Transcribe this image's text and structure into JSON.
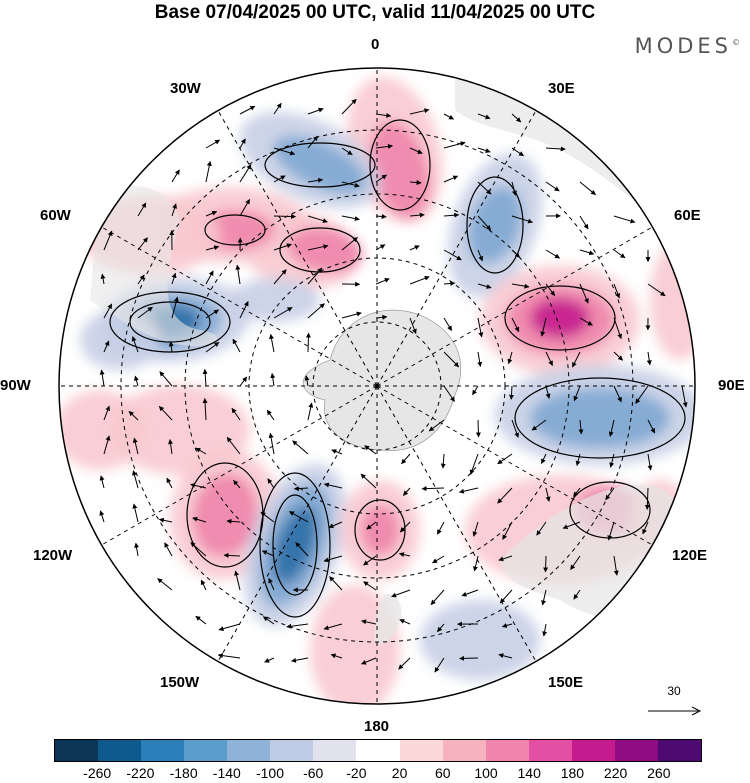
{
  "title": "Base 07/04/2025 00 UTC, valid 11/04/2025 00 UTC",
  "brand": "MODES",
  "brand_mark": "©",
  "longitude_labels": {
    "top": "0",
    "top_right": "30E",
    "right_upper": "60E",
    "right": "90E",
    "right_lower": "120E",
    "bottom_right": "150E",
    "bottom": "180",
    "bottom_left": "150W",
    "left_lower": "120W",
    "left": "90W",
    "left_upper": "60W",
    "top_left": "30W"
  },
  "reference_vector": {
    "label": "30"
  },
  "colorbar": {
    "colors": [
      "#0c3556",
      "#0f5a8c",
      "#2b7fb8",
      "#5a9ccb",
      "#8fb3d8",
      "#bfcbe4",
      "#e2e2ef",
      "#ffffff",
      "#fbd8d8",
      "#f6b3bd",
      "#ef85ac",
      "#e34fa3",
      "#c41c8e",
      "#8e0b82",
      "#4e0a72"
    ],
    "ticks": [
      "-260",
      "-220",
      "-180",
      "-140",
      "-100",
      "-60",
      "-20",
      "20",
      "60",
      "100",
      "140",
      "180",
      "220",
      "260"
    ]
  },
  "map_colors": {
    "ocean_background": "#ffffff",
    "land": "#e6e6e6",
    "positive_weak": "#f8c9cf",
    "positive_mid": "#ef85ac",
    "positive_strong": "#c41c8e",
    "negative_weak": "#c6cfe6",
    "negative_mid": "#7fa8d2",
    "negative_strong": "#2b6fa6"
  }
}
